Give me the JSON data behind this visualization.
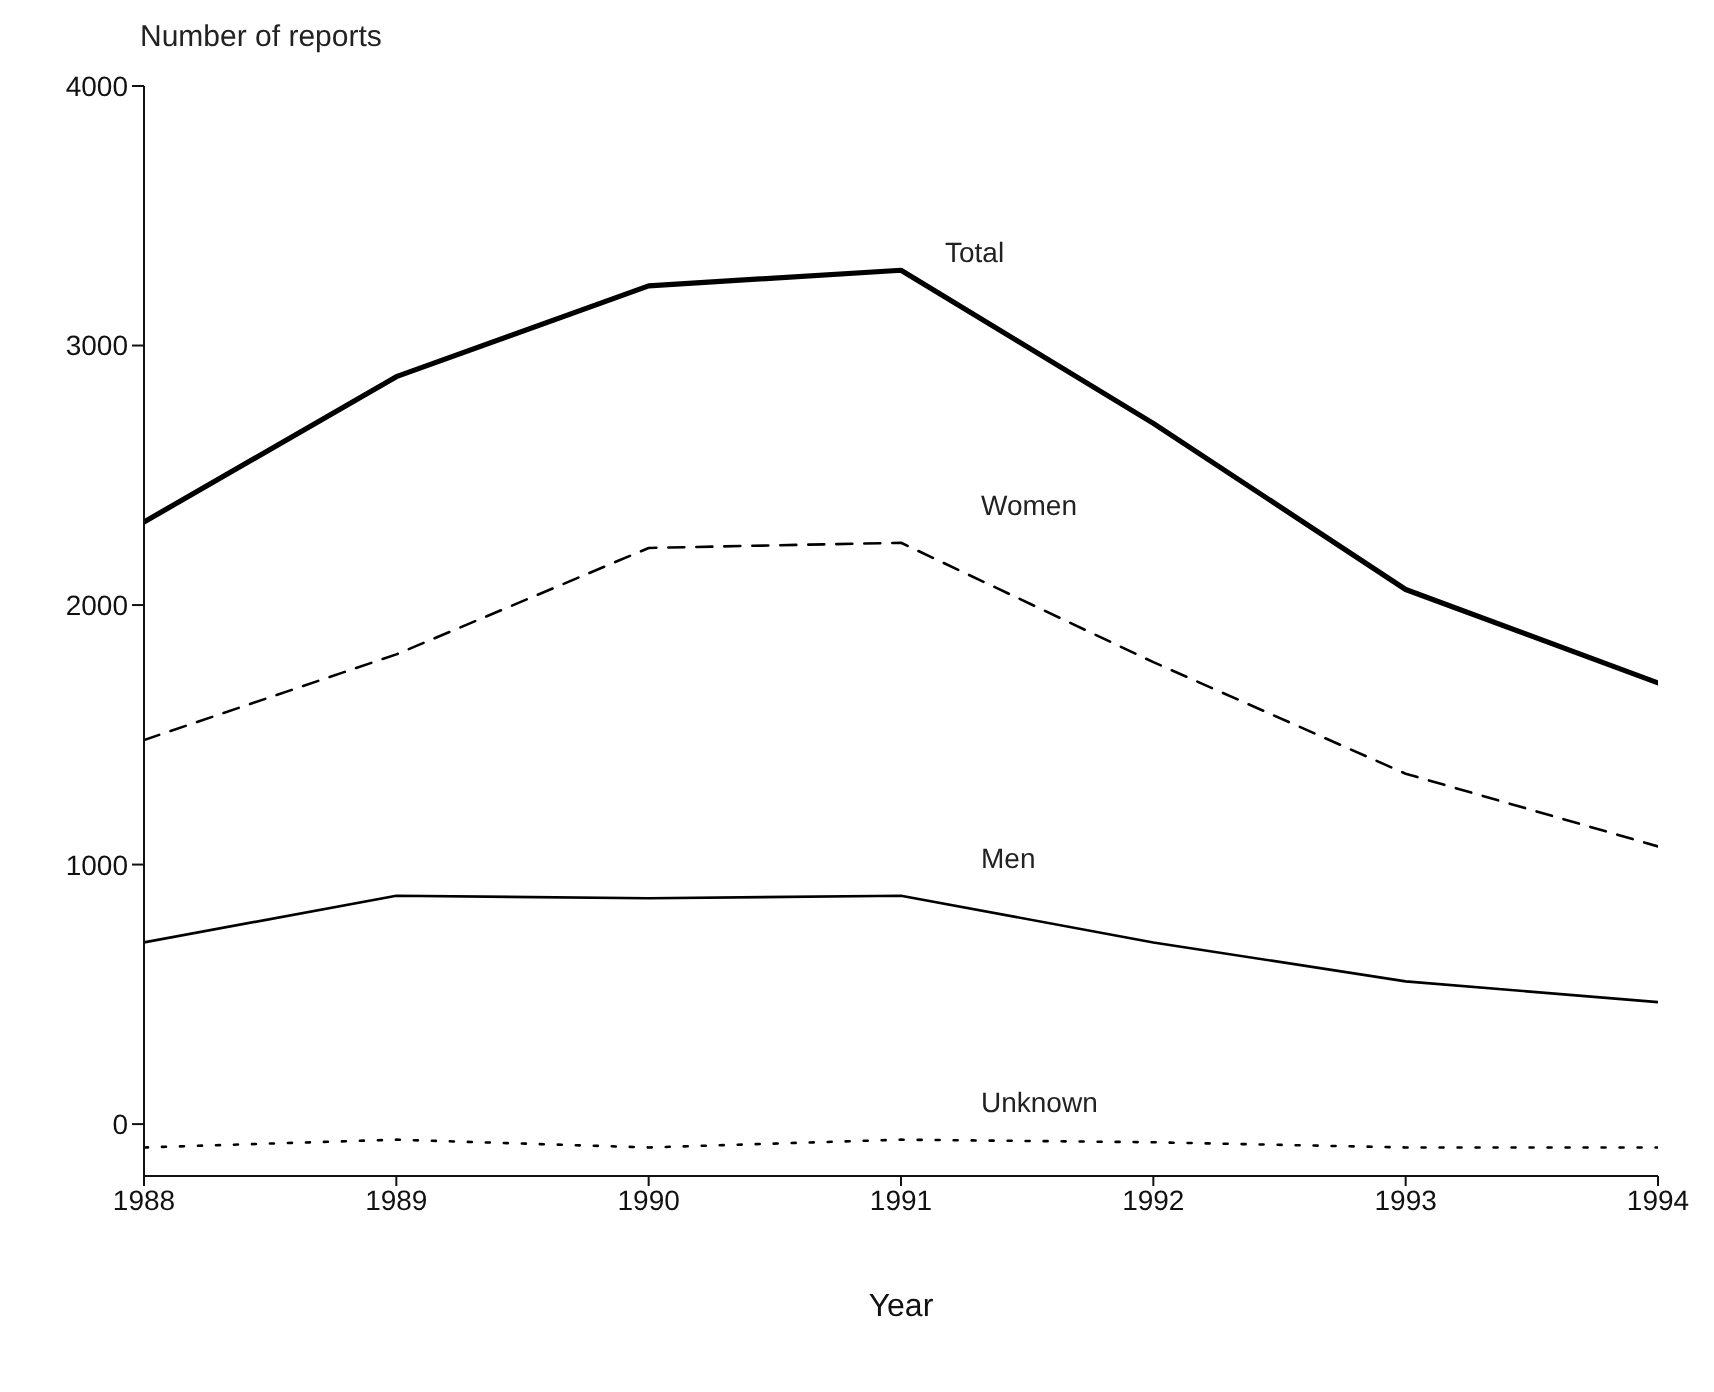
{
  "chart_data": {
    "type": "line",
    "ylabel": "Number of reports",
    "xlabel": "Year",
    "x": [
      1988,
      1989,
      1990,
      1991,
      1992,
      1993,
      1994
    ],
    "xlim": [
      1988,
      1994
    ],
    "xticks": [
      1988,
      1989,
      1990,
      1991,
      1992,
      1993,
      1994
    ],
    "ylim": [
      -200,
      4000
    ],
    "yticks": [
      0,
      1000,
      2000,
      3000,
      4000
    ],
    "grid": false,
    "legend": false,
    "marker": "none",
    "series": [
      {
        "name": "Total",
        "color": "#000000",
        "line_style": "solid",
        "values": [
          2320,
          2880,
          3230,
          3290,
          2700,
          2060,
          1700
        ]
      },
      {
        "name": "Women",
        "color": "#000000",
        "line_style": "dashed",
        "values": [
          1480,
          1810,
          2220,
          2240,
          1780,
          1350,
          1070
        ]
      },
      {
        "name": "Men",
        "color": "#000000",
        "line_style": "solid",
        "values": [
          700,
          880,
          870,
          880,
          700,
          550,
          470
        ]
      },
      {
        "name": "Unknown",
        "color": "#000000",
        "line_style": "dotted",
        "values": [
          -90,
          -60,
          -90,
          -60,
          -70,
          -90,
          -90
        ]
      }
    ]
  }
}
